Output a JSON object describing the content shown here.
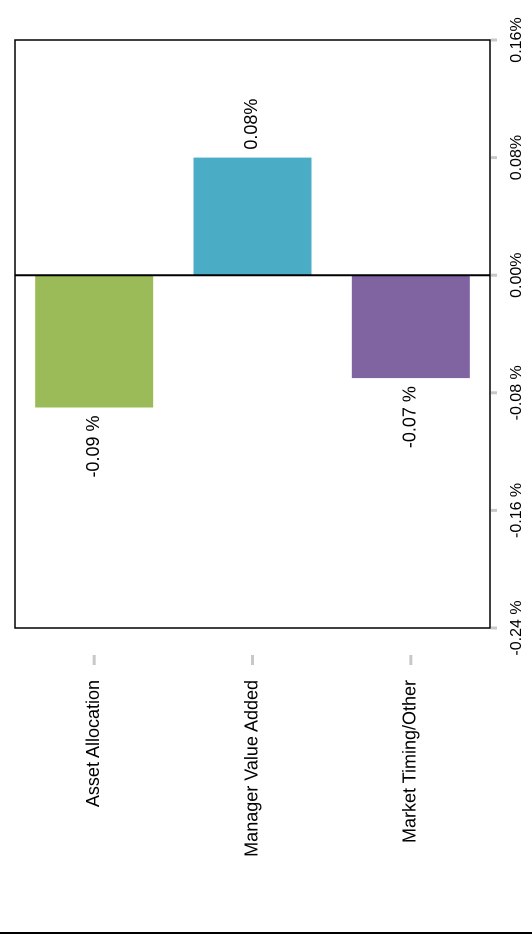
{
  "chart_data": {
    "type": "bar",
    "orientation": "rotated",
    "categories": [
      "Asset Allocation",
      "Manager Value Added",
      "Market Timing/Other"
    ],
    "values": [
      -0.09,
      0.08,
      -0.07
    ],
    "value_labels": [
      "-0.09 %",
      "0.08%",
      "-0.07 %"
    ],
    "colors": [
      "#9bbb59",
      "#4bacc6",
      "#8064a2"
    ],
    "ylim": [
      -0.24,
      0.16
    ],
    "ticks": [
      -0.24,
      -0.16,
      -0.08,
      0.0,
      0.08,
      0.16
    ],
    "tick_labels": [
      "-0.24 %",
      "-0.16 %",
      "-0.08 %",
      "0.00%",
      "0.08%",
      "0.16%"
    ],
    "title": "",
    "xlabel": "",
    "ylabel": "",
    "grid": false,
    "legend": "none"
  }
}
